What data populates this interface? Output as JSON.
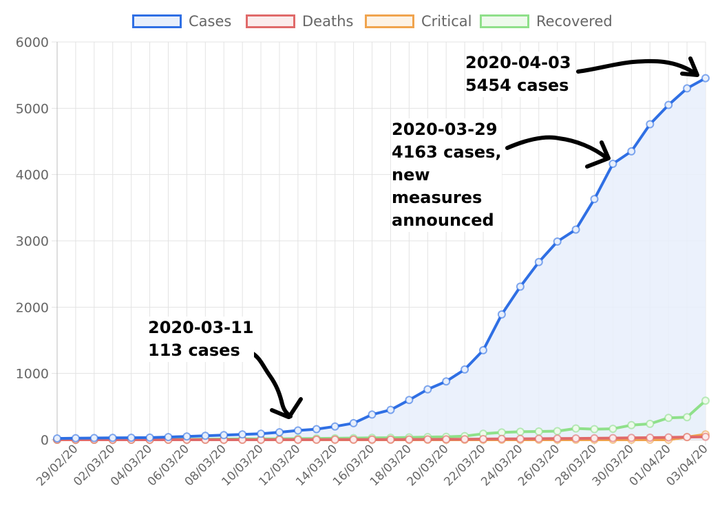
{
  "chart_data": {
    "type": "line",
    "ylim": [
      0,
      6000
    ],
    "y_ticks": [
      "0",
      "1000",
      "2000",
      "3000",
      "4000",
      "5000",
      "6000"
    ],
    "x_tick_labels": [
      "29/02/20",
      "02/03/20",
      "04/03/20",
      "06/03/20",
      "08/03/20",
      "10/03/20",
      "12/03/20",
      "14/03/20",
      "16/03/20",
      "18/03/20",
      "20/03/20",
      "22/03/20",
      "24/03/20",
      "26/03/20",
      "28/03/20",
      "30/03/20",
      "01/04/20",
      "03/04/20"
    ],
    "x": [
      "28/02/20",
      "29/02/20",
      "01/03/20",
      "02/03/20",
      "03/03/20",
      "04/03/20",
      "05/03/20",
      "06/03/20",
      "07/03/20",
      "08/03/20",
      "09/03/20",
      "10/03/20",
      "11/03/20",
      "12/03/20",
      "13/03/20",
      "14/03/20",
      "15/03/20",
      "16/03/20",
      "17/03/20",
      "18/03/20",
      "19/03/20",
      "20/03/20",
      "21/03/20",
      "22/03/20",
      "23/03/20",
      "24/03/20",
      "25/03/20",
      "26/03/20",
      "27/03/20",
      "28/03/20",
      "29/03/20",
      "30/03/20",
      "31/03/20",
      "01/04/20",
      "02/04/20",
      "03/04/20"
    ],
    "grid": true,
    "legend_position": "top",
    "series": [
      {
        "name": "Cases",
        "color": "#2f6fe4",
        "fill": "#e8effb",
        "values": [
          20,
          24,
          26,
          28,
          30,
          32,
          40,
          50,
          60,
          70,
          80,
          90,
          113,
          140,
          160,
          200,
          250,
          380,
          450,
          600,
          760,
          880,
          1060,
          1350,
          1890,
          2310,
          2680,
          2990,
          3170,
          3630,
          4163,
          4350,
          4760,
          5050,
          5300,
          5454
        ]
      },
      {
        "name": "Deaths",
        "color": "#e06a6a",
        "fill": "#fbecec",
        "values": [
          0,
          0,
          0,
          0,
          0,
          0,
          0,
          0,
          0,
          0,
          0,
          0,
          1,
          1,
          1,
          2,
          2,
          3,
          3,
          4,
          5,
          6,
          8,
          10,
          12,
          14,
          16,
          18,
          20,
          22,
          25,
          28,
          31,
          35,
          40,
          45
        ]
      },
      {
        "name": "Critical",
        "color": "#f0a44e",
        "fill": "#fdf3e6",
        "values": [
          0,
          0,
          0,
          0,
          0,
          0,
          0,
          0,
          0,
          0,
          0,
          0,
          0,
          0,
          0,
          0,
          0,
          0,
          0,
          0,
          0,
          0,
          0,
          0,
          0,
          0,
          0,
          0,
          0,
          0,
          0,
          0,
          0,
          0,
          40,
          80
        ]
      },
      {
        "name": "Recovered",
        "color": "#8fe08a",
        "fill": "#eefaec",
        "values": [
          0,
          0,
          0,
          2,
          3,
          4,
          5,
          6,
          8,
          10,
          12,
          14,
          15,
          17,
          20,
          22,
          25,
          28,
          30,
          35,
          40,
          45,
          55,
          90,
          110,
          120,
          125,
          130,
          170,
          160,
          165,
          220,
          240,
          330,
          340,
          590
        ]
      }
    ]
  },
  "legend": [
    {
      "label": "Cases",
      "color": "#2f6fe4",
      "fill": "#e8effb"
    },
    {
      "label": "Deaths",
      "color": "#e06a6a",
      "fill": "#fbecec"
    },
    {
      "label": "Critical",
      "color": "#f0a44e",
      "fill": "#fdf3e6"
    },
    {
      "label": "Recovered",
      "color": "#8fe08a",
      "fill": "#eefaec"
    }
  ],
  "annotations": [
    {
      "text": "2020-03-11\n113 cases"
    },
    {
      "text": "2020-03-29\n4163 cases,\nnew\nmeasures\nannounced"
    },
    {
      "text": "2020-04-03\n5454 cases"
    }
  ]
}
